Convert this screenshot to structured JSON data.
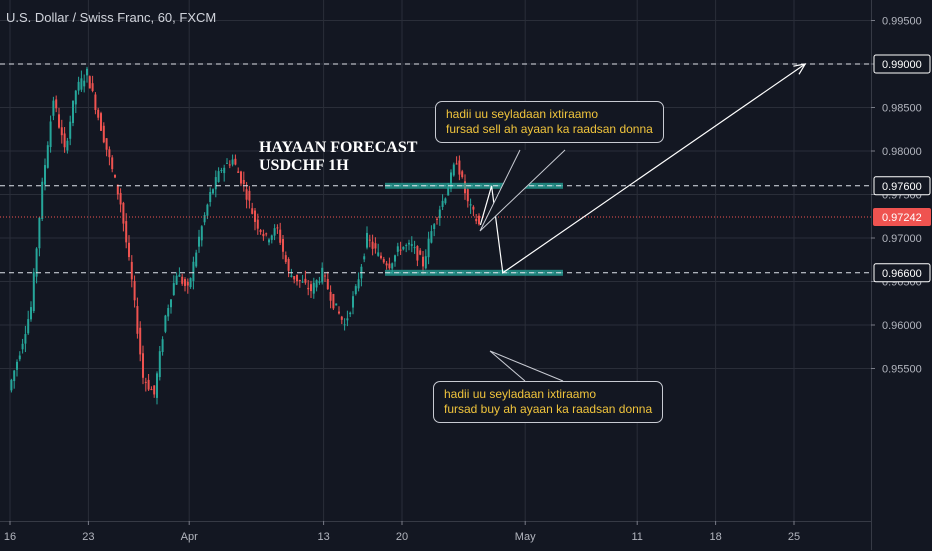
{
  "header": {
    "symbol_title": "U.S. Dollar / Swiss Franc, 60, FXCM"
  },
  "annotations": {
    "forecast_line1": "HAYAAN FORECAST",
    "forecast_line2": "USDCHF 1H",
    "sell_note_line1": "hadii uu seyladaan ixtiraamo",
    "sell_note_line2": "fursad sell ah ayaan ka raadsan donna",
    "buy_note_line1": "hadii uu seyladaan ixtiraamo",
    "buy_note_line2": "fursad buy  ah ayaan ka raadsan donna"
  },
  "colors": {
    "background": "#131722",
    "up_candle": "#26a69a",
    "down_candle": "#ef5350",
    "zone": "#26a69a",
    "current_price_label": "#ef5350",
    "note_text": "#f0c43c",
    "grid": "#2a2e39"
  },
  "chart_data": {
    "type": "candlestick",
    "instrument": "USDCHF",
    "timeframe": "60",
    "source": "FXCM",
    "ylim": [
      0.9515,
      0.9955
    ],
    "y_ticks": [
      "0.99500",
      "0.99000",
      "0.98500",
      "0.98000",
      "0.97500",
      "0.97000",
      "0.96500",
      "0.96000",
      "0.95500"
    ],
    "x_ticks": [
      "16",
      "23",
      "Apr",
      "13",
      "20",
      "May",
      "11",
      "18",
      "25"
    ],
    "current_price": "0.97242",
    "horizontal_levels": [
      "0.99000",
      "0.97600",
      "0.96600"
    ],
    "zones": [
      {
        "price": 0.976
      },
      {
        "price": 0.966
      }
    ],
    "price_path": [
      {
        "date": "Mar 16",
        "close": 0.9525
      },
      {
        "date": "Mar 17",
        "close": 0.957
      },
      {
        "date": "Mar 18",
        "close": 0.962
      },
      {
        "date": "Mar 19",
        "close": 0.976
      },
      {
        "date": "Mar 20",
        "close": 0.986
      },
      {
        "date": "Mar 21",
        "close": 0.98
      },
      {
        "date": "Mar 22",
        "close": 0.987
      },
      {
        "date": "Mar 23",
        "close": 0.989
      },
      {
        "date": "Mar 24",
        "close": 0.984
      },
      {
        "date": "Mar 25",
        "close": 0.979
      },
      {
        "date": "Mar 26",
        "close": 0.974
      },
      {
        "date": "Mar 27",
        "close": 0.965
      },
      {
        "date": "Mar 28",
        "close": 0.954
      },
      {
        "date": "Mar 29",
        "close": 0.952
      },
      {
        "date": "Mar 30",
        "close": 0.961
      },
      {
        "date": "Mar 31",
        "close": 0.966
      },
      {
        "date": "Apr 1",
        "close": 0.964
      },
      {
        "date": "Apr 2",
        "close": 0.97
      },
      {
        "date": "Apr 3",
        "close": 0.975
      },
      {
        "date": "Apr 4",
        "close": 0.978
      },
      {
        "date": "Apr 5",
        "close": 0.979
      },
      {
        "date": "Apr 6",
        "close": 0.976
      },
      {
        "date": "Apr 7",
        "close": 0.972
      },
      {
        "date": "Apr 8",
        "close": 0.97
      },
      {
        "date": "Apr 9",
        "close": 0.971
      },
      {
        "date": "Apr 10",
        "close": 0.966
      },
      {
        "date": "Apr 11",
        "close": 0.965
      },
      {
        "date": "Apr 12",
        "close": 0.964
      },
      {
        "date": "Apr 13",
        "close": 0.966
      },
      {
        "date": "Apr 14",
        "close": 0.9625
      },
      {
        "date": "Apr 15",
        "close": 0.96
      },
      {
        "date": "Apr 16",
        "close": 0.964
      },
      {
        "date": "Apr 17",
        "close": 0.97
      },
      {
        "date": "Apr 18",
        "close": 0.968
      },
      {
        "date": "Apr 19",
        "close": 0.967
      },
      {
        "date": "Apr 20",
        "close": 0.969
      },
      {
        "date": "Apr 21",
        "close": 0.969
      },
      {
        "date": "Apr 22",
        "close": 0.967
      },
      {
        "date": "Apr 23",
        "close": 0.972
      },
      {
        "date": "Apr 24",
        "close": 0.975
      },
      {
        "date": "Apr 25",
        "close": 0.979
      },
      {
        "date": "Apr 26",
        "close": 0.974
      },
      {
        "date": "Apr 27",
        "close": 0.9715
      }
    ],
    "projection": [
      {
        "date": "Apr 27",
        "price": 0.9715
      },
      {
        "date": "Apr 28",
        "price": 0.976
      },
      {
        "date": "Apr 29",
        "price": 0.966
      },
      {
        "date": "May 26",
        "price": 0.99
      }
    ]
  }
}
